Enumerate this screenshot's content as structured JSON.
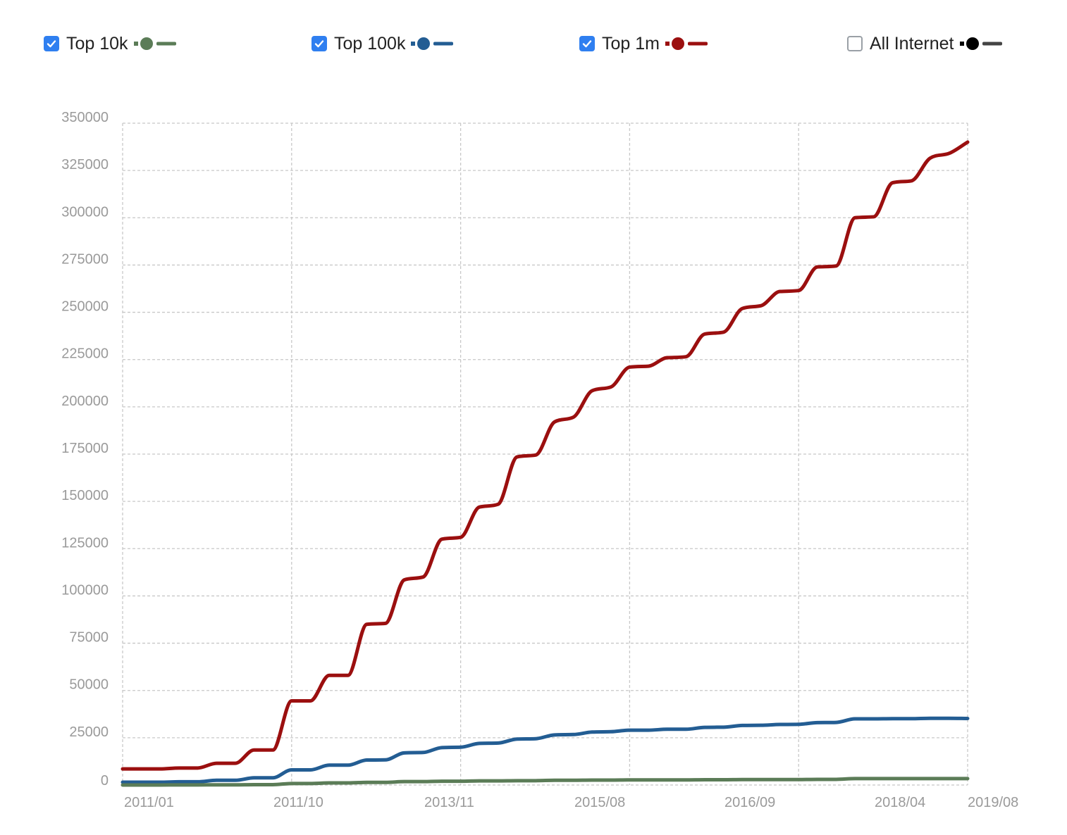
{
  "legend": [
    {
      "label": "Top 10k",
      "checked": true,
      "color": "#5b7c57"
    },
    {
      "label": "Top 100k",
      "checked": true,
      "color": "#235d93"
    },
    {
      "label": "Top 1m",
      "checked": true,
      "color": "#9b0f0f"
    },
    {
      "label": "All Internet",
      "checked": false,
      "color": "#000000",
      "line_color": "#444444"
    }
  ],
  "chart_data": {
    "type": "line",
    "title": "",
    "xlabel": "",
    "ylabel": "",
    "grid": true,
    "legend_position": "top",
    "x_tick_labels": [
      "2011/01",
      "2011/10",
      "2013/11",
      "2015/08",
      "2016/09",
      "2018/04",
      "2019/08"
    ],
    "y_tick_labels": [
      "0",
      "25000",
      "50000",
      "75000",
      "100000",
      "125000",
      "150000",
      "175000",
      "200000",
      "225000",
      "250000",
      "275000",
      "300000",
      "325000",
      "350000"
    ],
    "ylim": [
      0,
      350000
    ],
    "x_positions": [
      0,
      0.5,
      1,
      1.5,
      2,
      2.5,
      3,
      3.5,
      4,
      4.5,
      5,
      5.5,
      6,
      6.5,
      7,
      7.5,
      8,
      8.5,
      9,
      9.5,
      10,
      10.5,
      11,
      11.5,
      12,
      12.5,
      13,
      13.5,
      14,
      14.5,
      15,
      15.5,
      16,
      16.5,
      17,
      17.5,
      18,
      18.5,
      19,
      19.5,
      20,
      20.5,
      21,
      21.5,
      22,
      22.5
    ],
    "series": [
      {
        "name": "Top 1m",
        "color": "#9b0f0f",
        "values": [
          8500,
          8500,
          8500,
          9000,
          9000,
          11500,
          11500,
          18500,
          18500,
          44500,
          44500,
          58000,
          58000,
          85000,
          85500,
          108500,
          110000,
          130000,
          131000,
          147000,
          148500,
          173500,
          174500,
          192000,
          194500,
          208500,
          210500,
          221000,
          221500,
          226000,
          226500,
          238500,
          239500,
          252000,
          253500,
          261000,
          261500,
          274000,
          274500,
          300000,
          300500,
          318500,
          319500,
          331500,
          334000,
          340000
        ]
      },
      {
        "name": "Top 100k",
        "color": "#235d93",
        "values": [
          1500,
          1500,
          1500,
          1700,
          1700,
          2500,
          2500,
          3800,
          3800,
          8000,
          8000,
          10500,
          10500,
          13200,
          13300,
          17000,
          17200,
          19800,
          20000,
          22000,
          22200,
          24300,
          24500,
          26500,
          26700,
          28000,
          28200,
          29000,
          29000,
          29500,
          29500,
          30500,
          30600,
          31500,
          31600,
          32000,
          32100,
          33000,
          33100,
          35000,
          35000,
          35100,
          35100,
          35300,
          35300,
          35200
        ]
      },
      {
        "name": "Top 10k",
        "color": "#5b7c57",
        "values": [
          0,
          0,
          0,
          50,
          50,
          100,
          100,
          200,
          200,
          800,
          800,
          1100,
          1100,
          1400,
          1400,
          1800,
          1800,
          2000,
          2000,
          2200,
          2200,
          2300,
          2300,
          2500,
          2500,
          2600,
          2600,
          2700,
          2700,
          2700,
          2700,
          2800,
          2800,
          2900,
          2900,
          2900,
          2900,
          3000,
          3000,
          3400,
          3400,
          3400,
          3400,
          3400,
          3400,
          3400
        ]
      }
    ]
  }
}
